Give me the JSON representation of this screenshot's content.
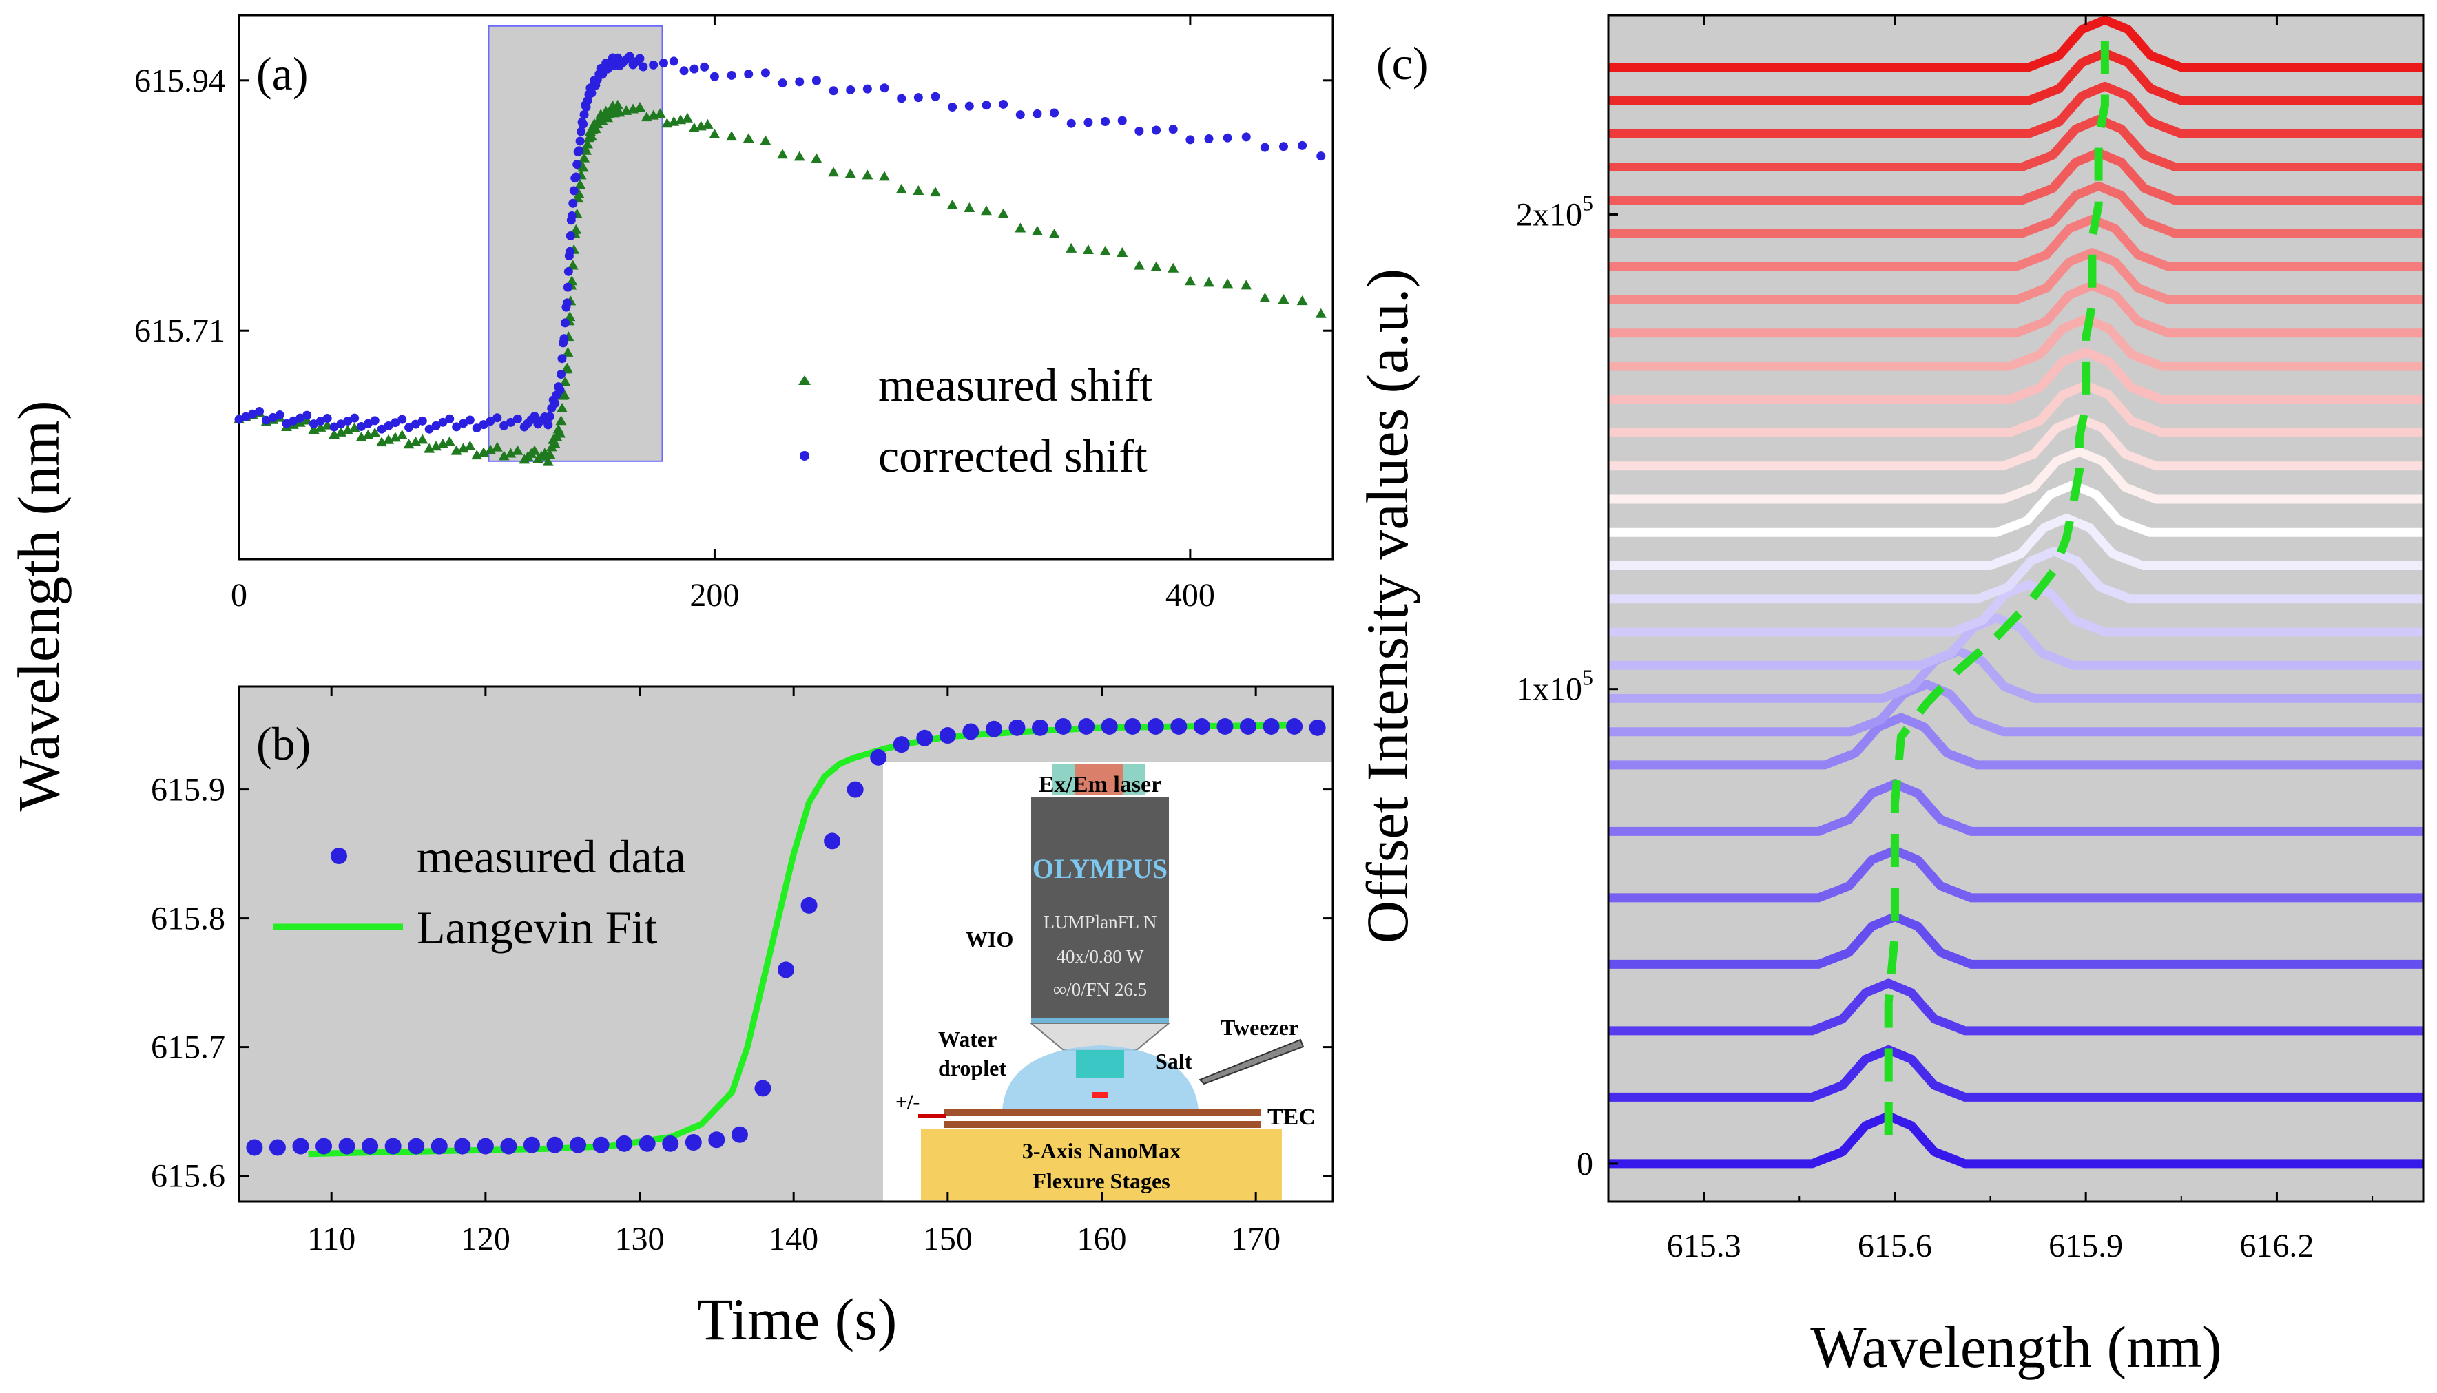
{
  "chart_data": [
    {
      "id": "a",
      "type": "scatter",
      "panel_label": "(a)",
      "xlabel": "",
      "ylabel": "Wavelength (nm)",
      "xlim": [
        0,
        460
      ],
      "ylim": [
        615.5,
        616.0
      ],
      "xticks": [
        0,
        200,
        400
      ],
      "xtick_labels": [
        "0",
        "200",
        "400"
      ],
      "yticks": [
        615.71,
        615.94
      ],
      "ytick_labels": [
        "615.71",
        "615.94"
      ],
      "highlight_x_range": [
        105,
        178
      ],
      "series": [
        {
          "name": "measured shift",
          "marker": "triangle",
          "color": "#1f7a1f",
          "x": [
            0,
            20,
            40,
            60,
            80,
            100,
            120,
            130,
            135,
            138,
            140,
            143,
            146,
            150,
            155,
            160,
            180,
            200,
            250,
            300,
            350,
            400,
            455
          ],
          "y": [
            615.633,
            615.626,
            615.619,
            615.612,
            615.606,
            615.6,
            615.596,
            615.594,
            615.62,
            615.68,
            615.76,
            615.84,
            615.88,
            615.9,
            615.91,
            615.915,
            615.905,
            615.895,
            615.86,
            615.83,
            615.79,
            615.76,
            615.73
          ]
        },
        {
          "name": "corrected shift",
          "marker": "circle",
          "color": "#2b20e0",
          "x": [
            0,
            20,
            40,
            60,
            80,
            100,
            120,
            130,
            135,
            138,
            140,
            143,
            146,
            150,
            155,
            160,
            170,
            200,
            250,
            300,
            350,
            400,
            455
          ],
          "y": [
            615.633,
            615.629,
            615.626,
            615.624,
            615.624,
            615.625,
            615.626,
            615.628,
            615.66,
            615.74,
            615.82,
            615.88,
            615.92,
            615.94,
            615.955,
            615.958,
            615.957,
            615.948,
            615.935,
            615.92,
            615.905,
            615.89,
            615.875
          ]
        }
      ]
    },
    {
      "id": "b",
      "type": "scatter",
      "panel_label": "(b)",
      "xlabel": "Time (s)",
      "ylabel": "",
      "xlim": [
        104,
        175
      ],
      "ylim": [
        615.58,
        615.98
      ],
      "xticks": [
        110,
        120,
        130,
        140,
        150,
        160,
        170
      ],
      "xtick_labels": [
        "110",
        "120",
        "130",
        "140",
        "150",
        "160",
        "170"
      ],
      "yticks": [
        615.6,
        615.7,
        615.8,
        615.9
      ],
      "ytick_labels": [
        "615.6",
        "615.7",
        "615.8",
        "615.9"
      ],
      "series": [
        {
          "name": "measured data",
          "marker": "circle",
          "color": "#2b20e0",
          "x": [
            105,
            106.5,
            108,
            109.5,
            111,
            112.5,
            114,
            115.5,
            117,
            118.5,
            120,
            121.5,
            123,
            124.5,
            126,
            127.5,
            129,
            130.5,
            132,
            133.5,
            135,
            136.5,
            138,
            139.5,
            141,
            142.5,
            144,
            145.5,
            147,
            148.5,
            150,
            151.5,
            153,
            154.5,
            156,
            157.5,
            159,
            160.5,
            162,
            163.5,
            165,
            166.5,
            168,
            169.5,
            171,
            172.5,
            174
          ],
          "y": [
            615.622,
            615.622,
            615.623,
            615.623,
            615.623,
            615.623,
            615.623,
            615.623,
            615.623,
            615.623,
            615.623,
            615.623,
            615.624,
            615.624,
            615.624,
            615.624,
            615.625,
            615.625,
            615.625,
            615.626,
            615.628,
            615.632,
            615.668,
            615.76,
            615.81,
            615.86,
            615.9,
            615.925,
            615.935,
            615.94,
            615.942,
            615.945,
            615.947,
            615.948,
            615.948,
            615.949,
            615.949,
            615.949,
            615.949,
            615.949,
            615.949,
            615.949,
            615.949,
            615.949,
            615.949,
            615.949,
            615.948
          ]
        },
        {
          "name": "Langevin Fit",
          "type": "line",
          "color": "#22ee22",
          "x": [
            108.5,
            112,
            116,
            120,
            124,
            128,
            132,
            134,
            136,
            137,
            138,
            139,
            140,
            141,
            142,
            143,
            144,
            146,
            148,
            150,
            155,
            160,
            165,
            172
          ],
          "y": [
            615.617,
            615.618,
            615.619,
            615.62,
            615.621,
            615.623,
            615.63,
            615.64,
            615.665,
            615.7,
            615.75,
            615.8,
            615.85,
            615.89,
            615.91,
            615.92,
            615.925,
            615.932,
            615.937,
            615.941,
            615.945,
            615.948,
            615.949,
            615.95
          ]
        }
      ],
      "inset": {
        "laser_label": "Ex/Em laser",
        "brand": "OLYMPUS",
        "objective_lines": [
          "LUMPlanFL N",
          "40x/0.80 W",
          "∞/0/FN 26.5"
        ],
        "objective_label": "WIO",
        "water_label": [
          "Water",
          "droplet"
        ],
        "tweezer_label": "Tweezer",
        "salt_label": "Salt",
        "tec_label": "TEC",
        "pm_label": "+/-",
        "stage_label": [
          "3-Axis NanoMax",
          "Flexure Stages"
        ]
      }
    },
    {
      "id": "c",
      "type": "line",
      "panel_label": "(c)",
      "xlabel": "Wavelength (nm)",
      "ylabel": "Offset Intensity values (a.u.)",
      "xlim": [
        615.15,
        616.43
      ],
      "ylim": [
        -8000,
        242000
      ],
      "xticks": [
        615.3,
        615.6,
        615.9,
        616.2
      ],
      "xtick_labels": [
        "615.3",
        "615.6",
        "615.9",
        "616.2"
      ],
      "yticks": [
        0,
        100000,
        200000
      ],
      "ytick_labels": [
        "0",
        "1x10",
        "2x10"
      ],
      "ytick_exponents": [
        "",
        "5",
        "5"
      ],
      "offsets": [
        0,
        14000,
        28000,
        42000,
        56000,
        70000,
        84000,
        91000,
        98000,
        105000,
        112000,
        119000,
        126000,
        133000,
        140000,
        147000,
        154000,
        161000,
        168000,
        175000,
        182000,
        189000,
        196000,
        203000,
        210000,
        217000,
        224000,
        231000
      ],
      "peak_centers": [
        615.59,
        615.59,
        615.59,
        615.6,
        615.6,
        615.6,
        615.61,
        615.65,
        615.7,
        615.76,
        615.81,
        615.85,
        615.87,
        615.88,
        615.89,
        615.89,
        615.9,
        615.9,
        615.9,
        615.91,
        615.91,
        615.91,
        615.92,
        615.92,
        615.92,
        615.93,
        615.93,
        615.93
      ],
      "peak_height": 10000,
      "tracking_line_color": "#22dd22"
    }
  ]
}
